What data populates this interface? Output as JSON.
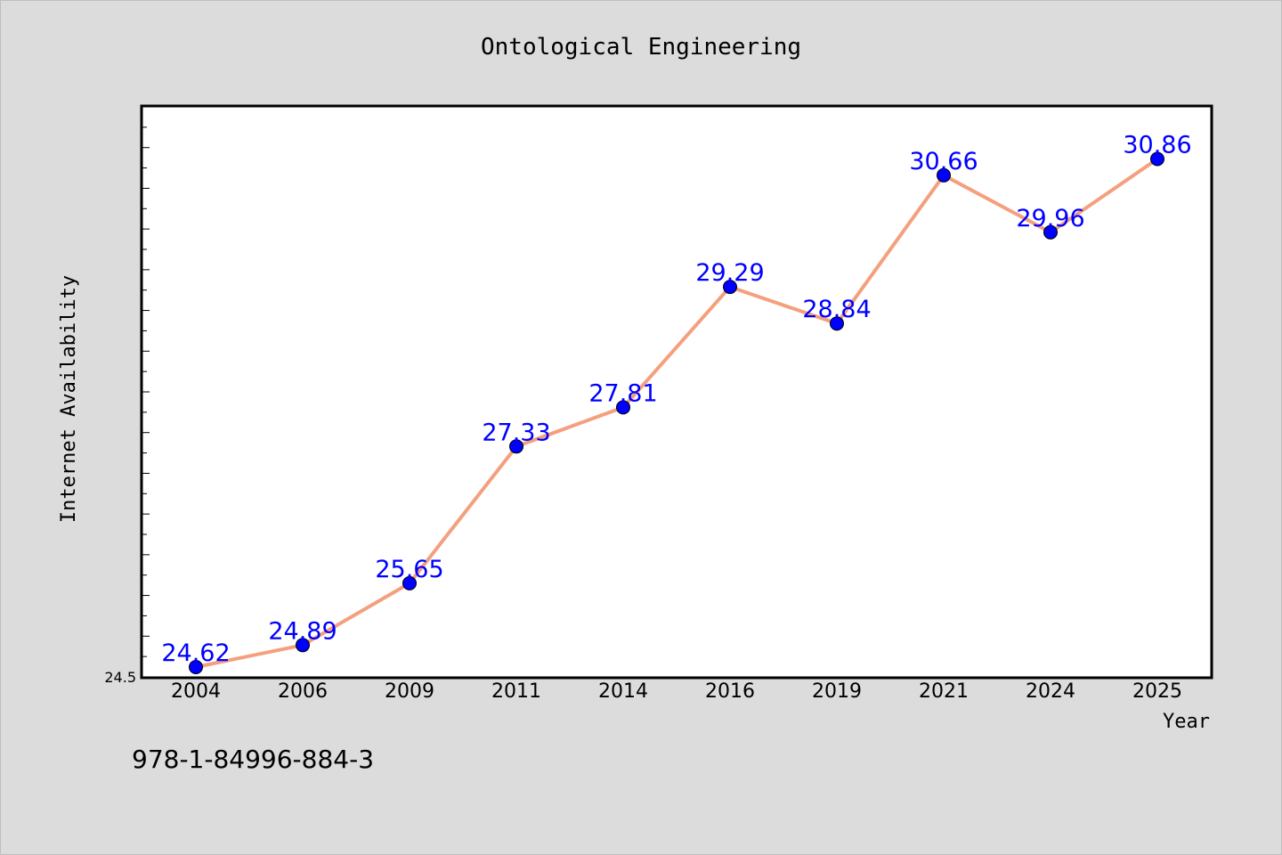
{
  "chart_data": {
    "type": "line",
    "title": "Ontological Engineering",
    "xlabel": "Year",
    "ylabel": "Internet Availability",
    "categories": [
      "2004",
      "2006",
      "2009",
      "2011",
      "2014",
      "2016",
      "2019",
      "2021",
      "2024",
      "2025"
    ],
    "series": [
      {
        "values": [
          24.62,
          24.89,
          25.65,
          27.33,
          27.81,
          29.29,
          28.84,
          30.66,
          29.96,
          30.86
        ]
      }
    ],
    "data_labels": [
      "24.62",
      "24.89",
      "25.65",
      "27.33",
      "27.81",
      "29.29",
      "28.84",
      "30.66",
      "29.96",
      "30.86"
    ],
    "ylim": [
      24.5,
      31.5
    ],
    "ytick_labels": [
      "24.5"
    ],
    "grid": false,
    "colors": {
      "line": "#f4a07e",
      "marker": "#0000ff",
      "label": "#0000ff",
      "background": "#dcdcdc",
      "plot_area": "#ffffff"
    }
  },
  "footer": {
    "isbn": "978-1-84996-884-3"
  }
}
